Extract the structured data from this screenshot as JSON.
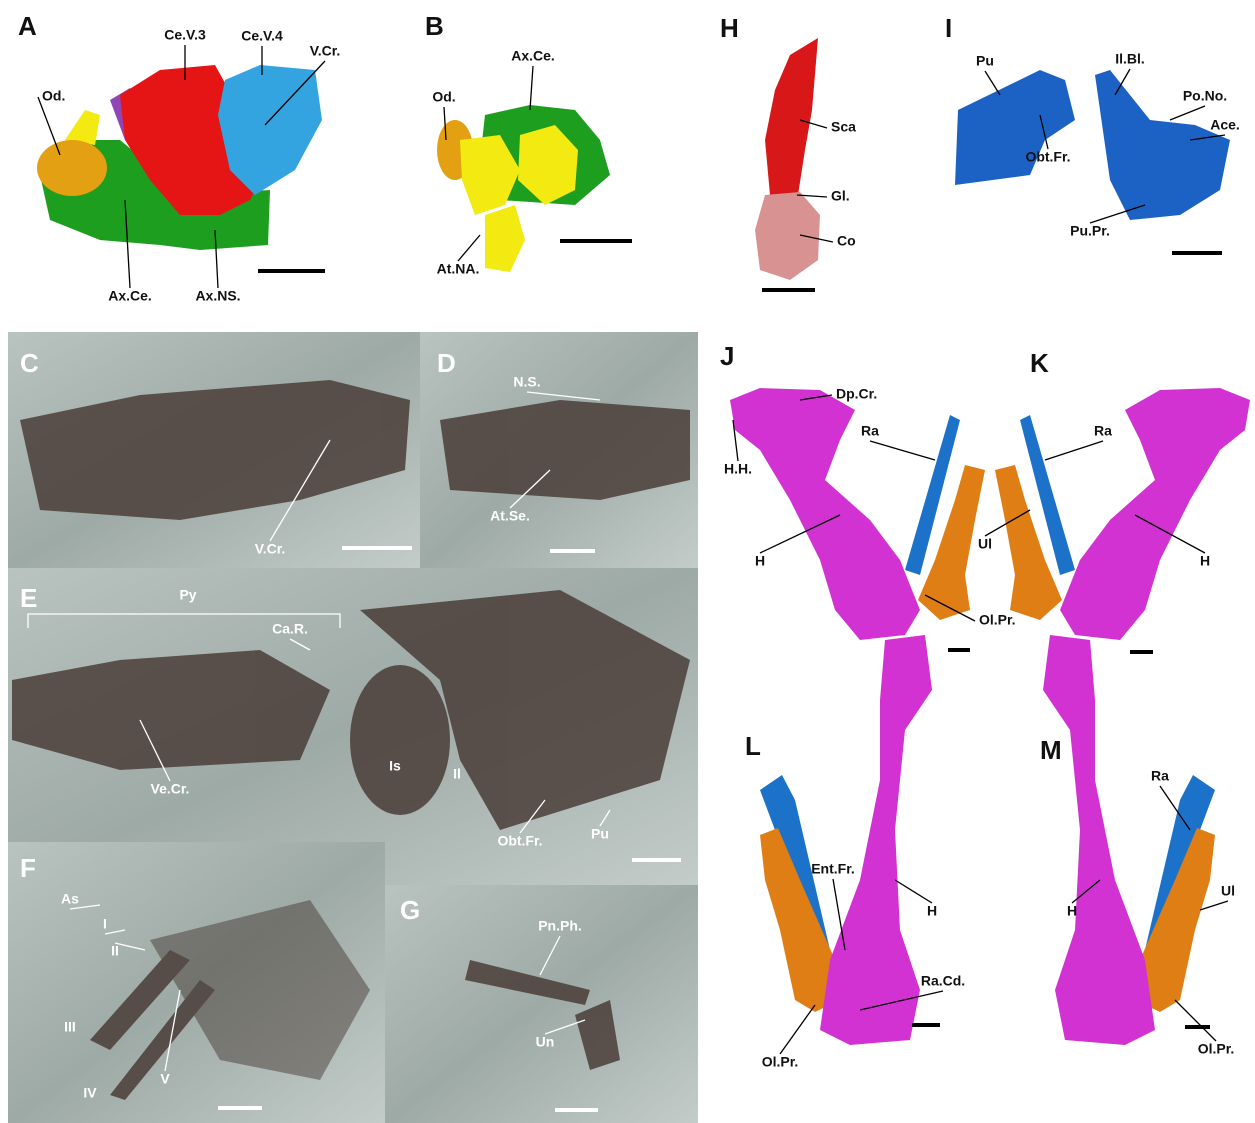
{
  "panels": [
    {
      "letter": "A",
      "labels": [
        "Od.",
        "Ce.V.3",
        "Ce.V.4",
        "V.Cr.",
        "Ax.Ce.",
        "Ax.NS."
      ]
    },
    {
      "letter": "B",
      "labels": [
        "Od.",
        "Ax.Ce.",
        "At.NA."
      ]
    },
    {
      "letter": "H",
      "labels": [
        "Sca",
        "Gl.",
        "Co"
      ]
    },
    {
      "letter": "I",
      "labels": [
        "Pu",
        "Obt.Fr.",
        "Il.Bl.",
        "Po.No.",
        "Ace.",
        "Pu.Pr."
      ]
    },
    {
      "letter": "C",
      "labels": [
        "V.Cr."
      ]
    },
    {
      "letter": "D",
      "labels": [
        "N.S.",
        "At.Se."
      ]
    },
    {
      "letter": "E",
      "labels": [
        "Py",
        "Ca.R.",
        "Ve.Cr.",
        "Is",
        "Il",
        "Obt.Fr.",
        "Pu"
      ]
    },
    {
      "letter": "F",
      "labels": [
        "As",
        "I",
        "II",
        "III",
        "IV",
        "V"
      ]
    },
    {
      "letter": "G",
      "labels": [
        "Pn.Ph.",
        "Un"
      ]
    },
    {
      "letter": "J",
      "labels": [
        "Dp.Cr.",
        "H.H.",
        "Ra",
        "H",
        "Ol.Pr."
      ]
    },
    {
      "letter": "K",
      "labels": [
        "Ra",
        "Ul",
        "H"
      ]
    },
    {
      "letter": "L",
      "labels": [
        "Ent.Fr.",
        "H",
        "Ra.Cd.",
        "Ol.Pr."
      ]
    },
    {
      "letter": "M",
      "labels": [
        "Ra",
        "Ul",
        "H",
        "Ol.Pr."
      ]
    }
  ]
}
